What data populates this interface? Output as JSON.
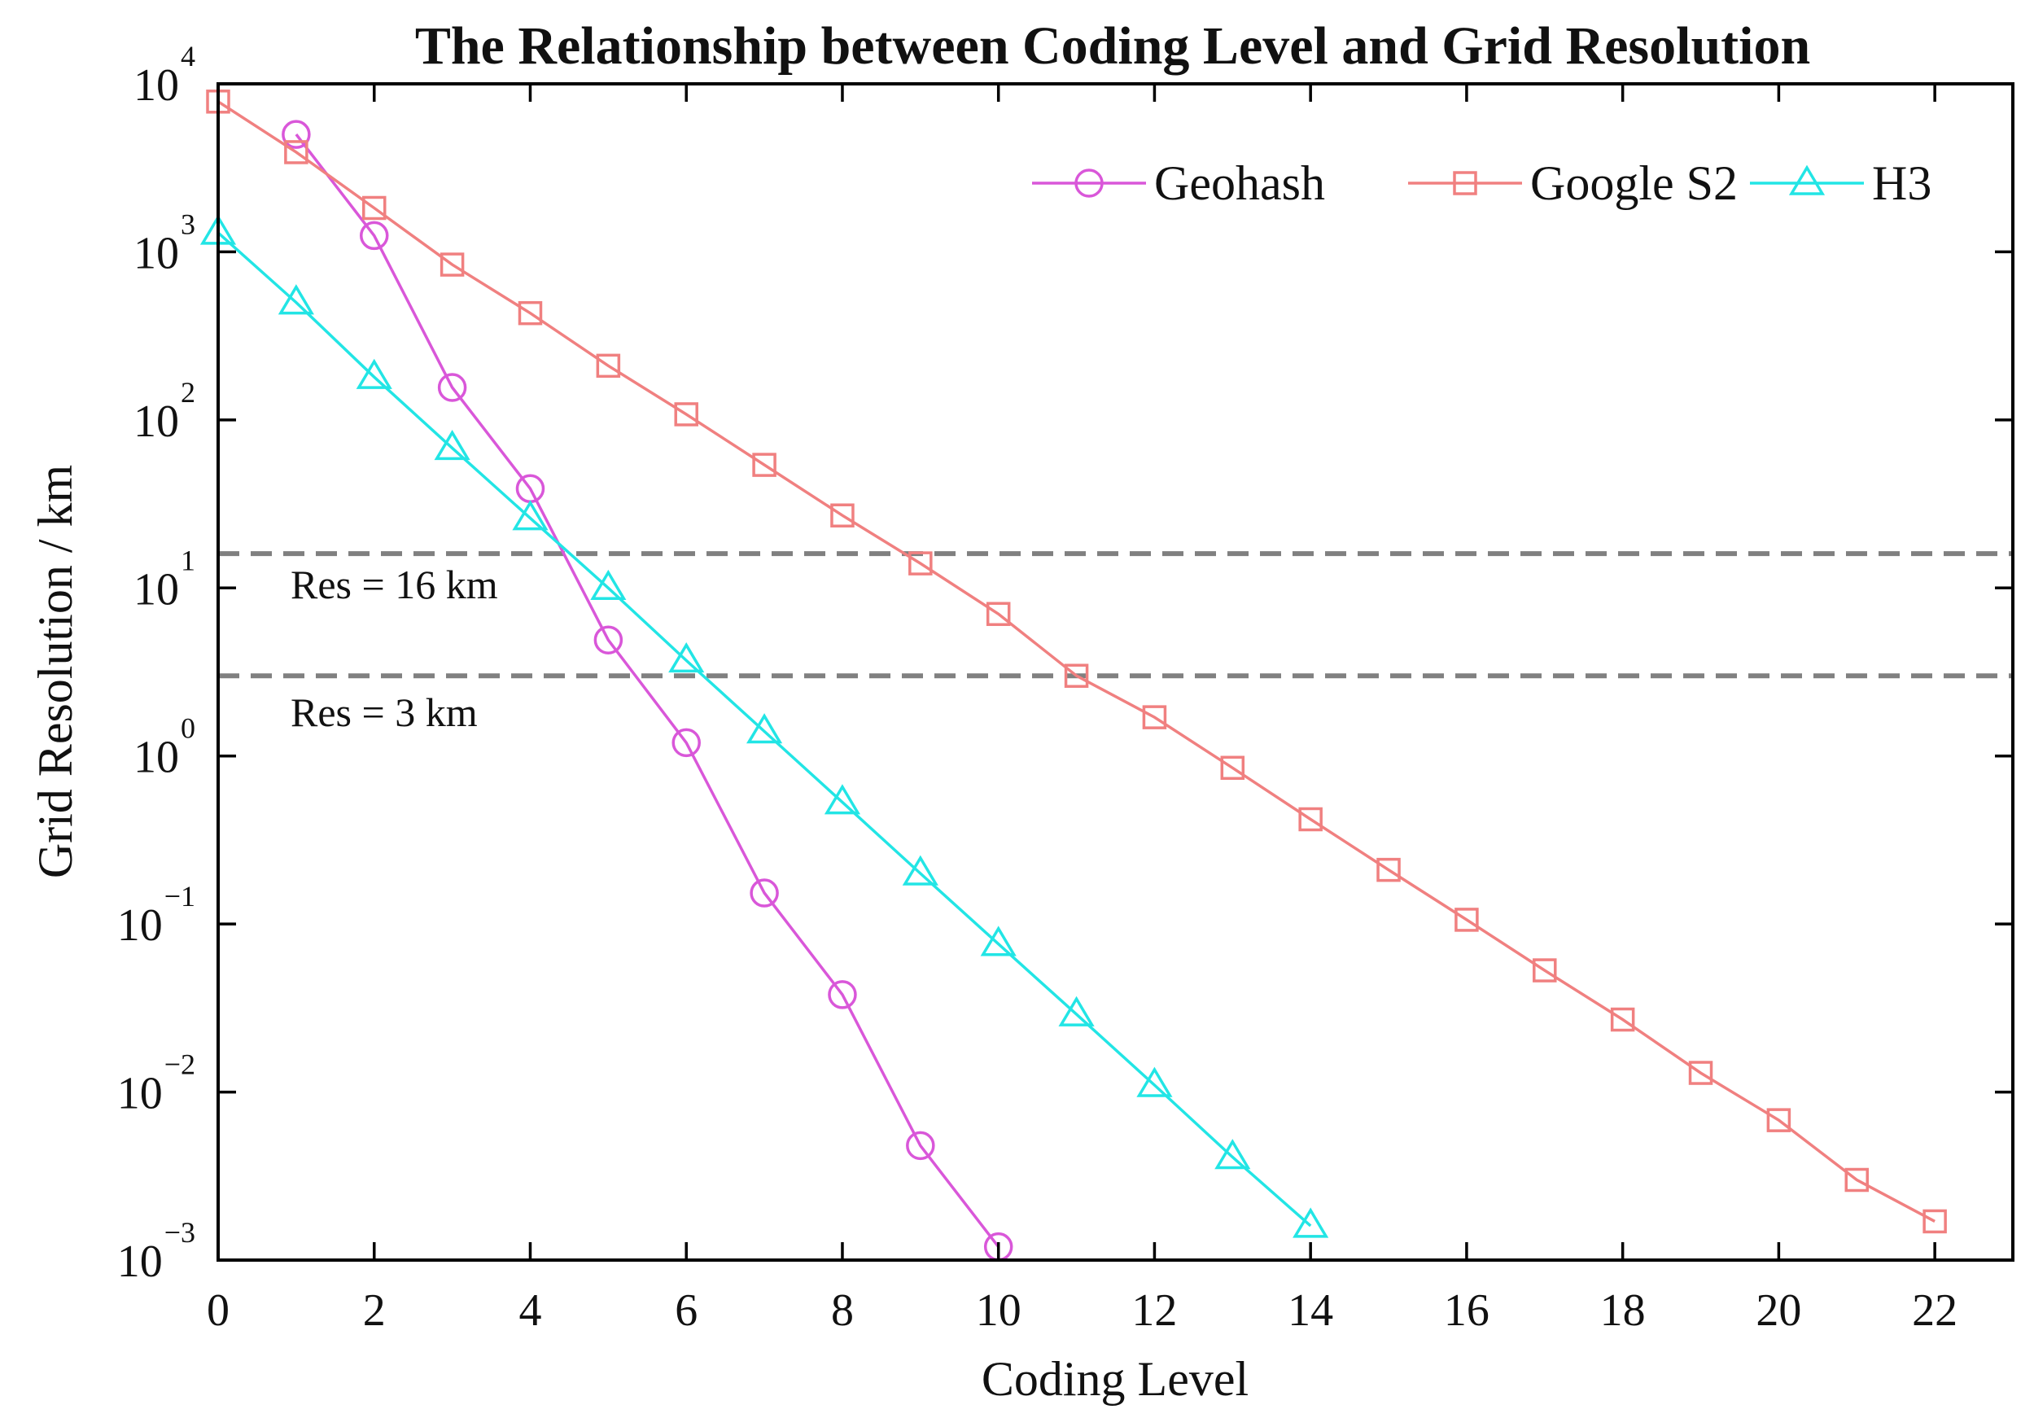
{
  "chart_data": {
    "type": "line",
    "title": "The Relationship between Coding Level and Grid Resolution",
    "xlabel": "Coding Level",
    "ylabel": "Grid Resolution / km",
    "yscale": "log",
    "xlim": [
      0,
      23
    ],
    "ylim": [
      0.001,
      10000
    ],
    "x_ticks": [
      0,
      2,
      4,
      6,
      8,
      10,
      12,
      14,
      16,
      18,
      20,
      22
    ],
    "y_ticks": [
      {
        "base": "10",
        "exp": "4",
        "value": 10000
      },
      {
        "base": "10",
        "exp": "3",
        "value": 1000
      },
      {
        "base": "10",
        "exp": "2",
        "value": 100
      },
      {
        "base": "10",
        "exp": "1",
        "value": 10
      },
      {
        "base": "10",
        "exp": "0",
        "value": 1
      },
      {
        "base": "10",
        "exp": "−1",
        "value": 0.1
      },
      {
        "base": "10",
        "exp": "−2",
        "value": 0.01
      },
      {
        "base": "10",
        "exp": "−3",
        "value": 0.001
      }
    ],
    "legend_position": "top-right",
    "series": [
      {
        "name": "Geohash",
        "color": "#d957d9",
        "marker": "circle",
        "x": [
          1,
          2,
          3,
          4,
          5,
          6,
          7,
          8,
          9,
          10
        ],
        "y": [
          5000,
          1250,
          156,
          39,
          4.9,
          1.2,
          0.153,
          0.038,
          0.0048,
          0.0012
        ]
      },
      {
        "name": "Google S2",
        "color": "#f08080",
        "marker": "square",
        "x": [
          0,
          1,
          2,
          3,
          4,
          5,
          6,
          7,
          8,
          9,
          10,
          11,
          12,
          13,
          14,
          15,
          16,
          17,
          18,
          19,
          20,
          21,
          22
        ],
        "y": [
          7842,
          3921,
          1825,
          840,
          432,
          210,
          108,
          54,
          27,
          14,
          7,
          3,
          1.7,
          0.85,
          0.42,
          0.21,
          0.106,
          0.053,
          0.027,
          0.013,
          0.0068,
          0.003,
          0.0017
        ]
      },
      {
        "name": "H3",
        "color": "#22e5e5",
        "marker": "triangle",
        "x": [
          0,
          1,
          2,
          3,
          4,
          5,
          6,
          7,
          8,
          9,
          10,
          11,
          12,
          13,
          14
        ],
        "y": [
          1300,
          500,
          180,
          68,
          26,
          10,
          3.7,
          1.4,
          0.53,
          0.2,
          0.076,
          0.029,
          0.011,
          0.0041,
          0.0016
        ]
      }
    ],
    "reference_lines": [
      {
        "value": 16,
        "label": "Res = 16 km",
        "color": "#808080"
      },
      {
        "value": 3,
        "label": "Res = 3 km",
        "color": "#808080"
      }
    ]
  }
}
